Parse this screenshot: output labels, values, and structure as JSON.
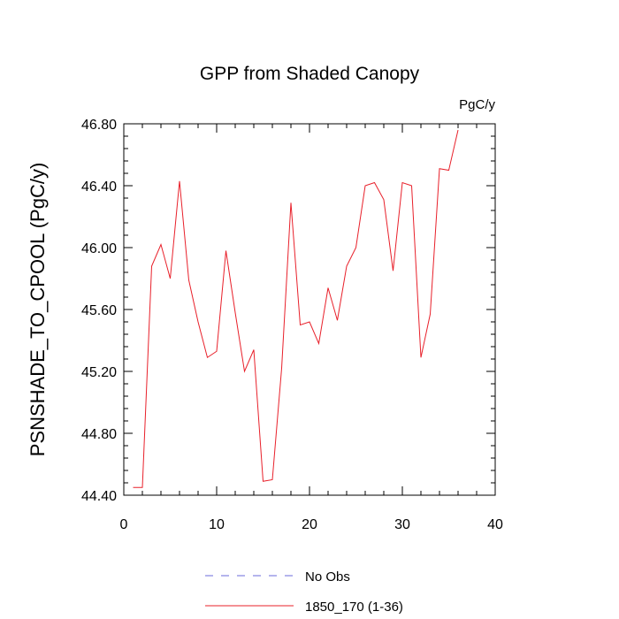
{
  "chart_data": {
    "type": "line",
    "title": "GPP from Shaded Canopy",
    "units": "PgC/y",
    "ylabel": "PSNSHADE_TO_CPOOL  (PgC/y)",
    "xlabel": "",
    "xlim": [
      0,
      40
    ],
    "ylim": [
      44.4,
      46.8
    ],
    "xticks": [
      0,
      10,
      20,
      30,
      40
    ],
    "xtick_labels": [
      "0",
      "10",
      "20",
      "30",
      "40"
    ],
    "yticks": [
      44.4,
      44.8,
      45.2,
      45.6,
      46.0,
      46.4,
      46.8
    ],
    "ytick_labels": [
      "44.40",
      "44.80",
      "45.20",
      "45.60",
      "46.00",
      "46.40",
      "46.80"
    ],
    "grid": false,
    "legend_position": "bottom",
    "series": [
      {
        "name": "1850_170 (1-36)",
        "color": "#e8202a",
        "style": "solid",
        "x": [
          1,
          2,
          3,
          4,
          5,
          6,
          7,
          8,
          9,
          10,
          11,
          12,
          13,
          14,
          15,
          16,
          17,
          18,
          19,
          20,
          21,
          22,
          23,
          24,
          25,
          26,
          27,
          28,
          29,
          30,
          31,
          32,
          33,
          34,
          35,
          36
        ],
        "values": [
          44.45,
          44.45,
          45.88,
          46.02,
          45.8,
          46.43,
          45.79,
          45.52,
          45.29,
          45.33,
          45.98,
          45.58,
          45.2,
          45.34,
          44.49,
          44.5,
          45.22,
          46.29,
          45.5,
          45.52,
          45.38,
          45.74,
          45.53,
          45.88,
          46.0,
          46.4,
          46.42,
          46.31,
          45.85,
          46.42,
          46.4,
          45.29,
          45.57,
          46.51,
          46.5,
          46.76
        ]
      }
    ],
    "legend": [
      {
        "label": "No Obs",
        "color": "#6b6bdb",
        "style": "dashed"
      },
      {
        "label": "1850_170 (1-36)",
        "color": "#e8202a",
        "style": "solid"
      }
    ]
  }
}
